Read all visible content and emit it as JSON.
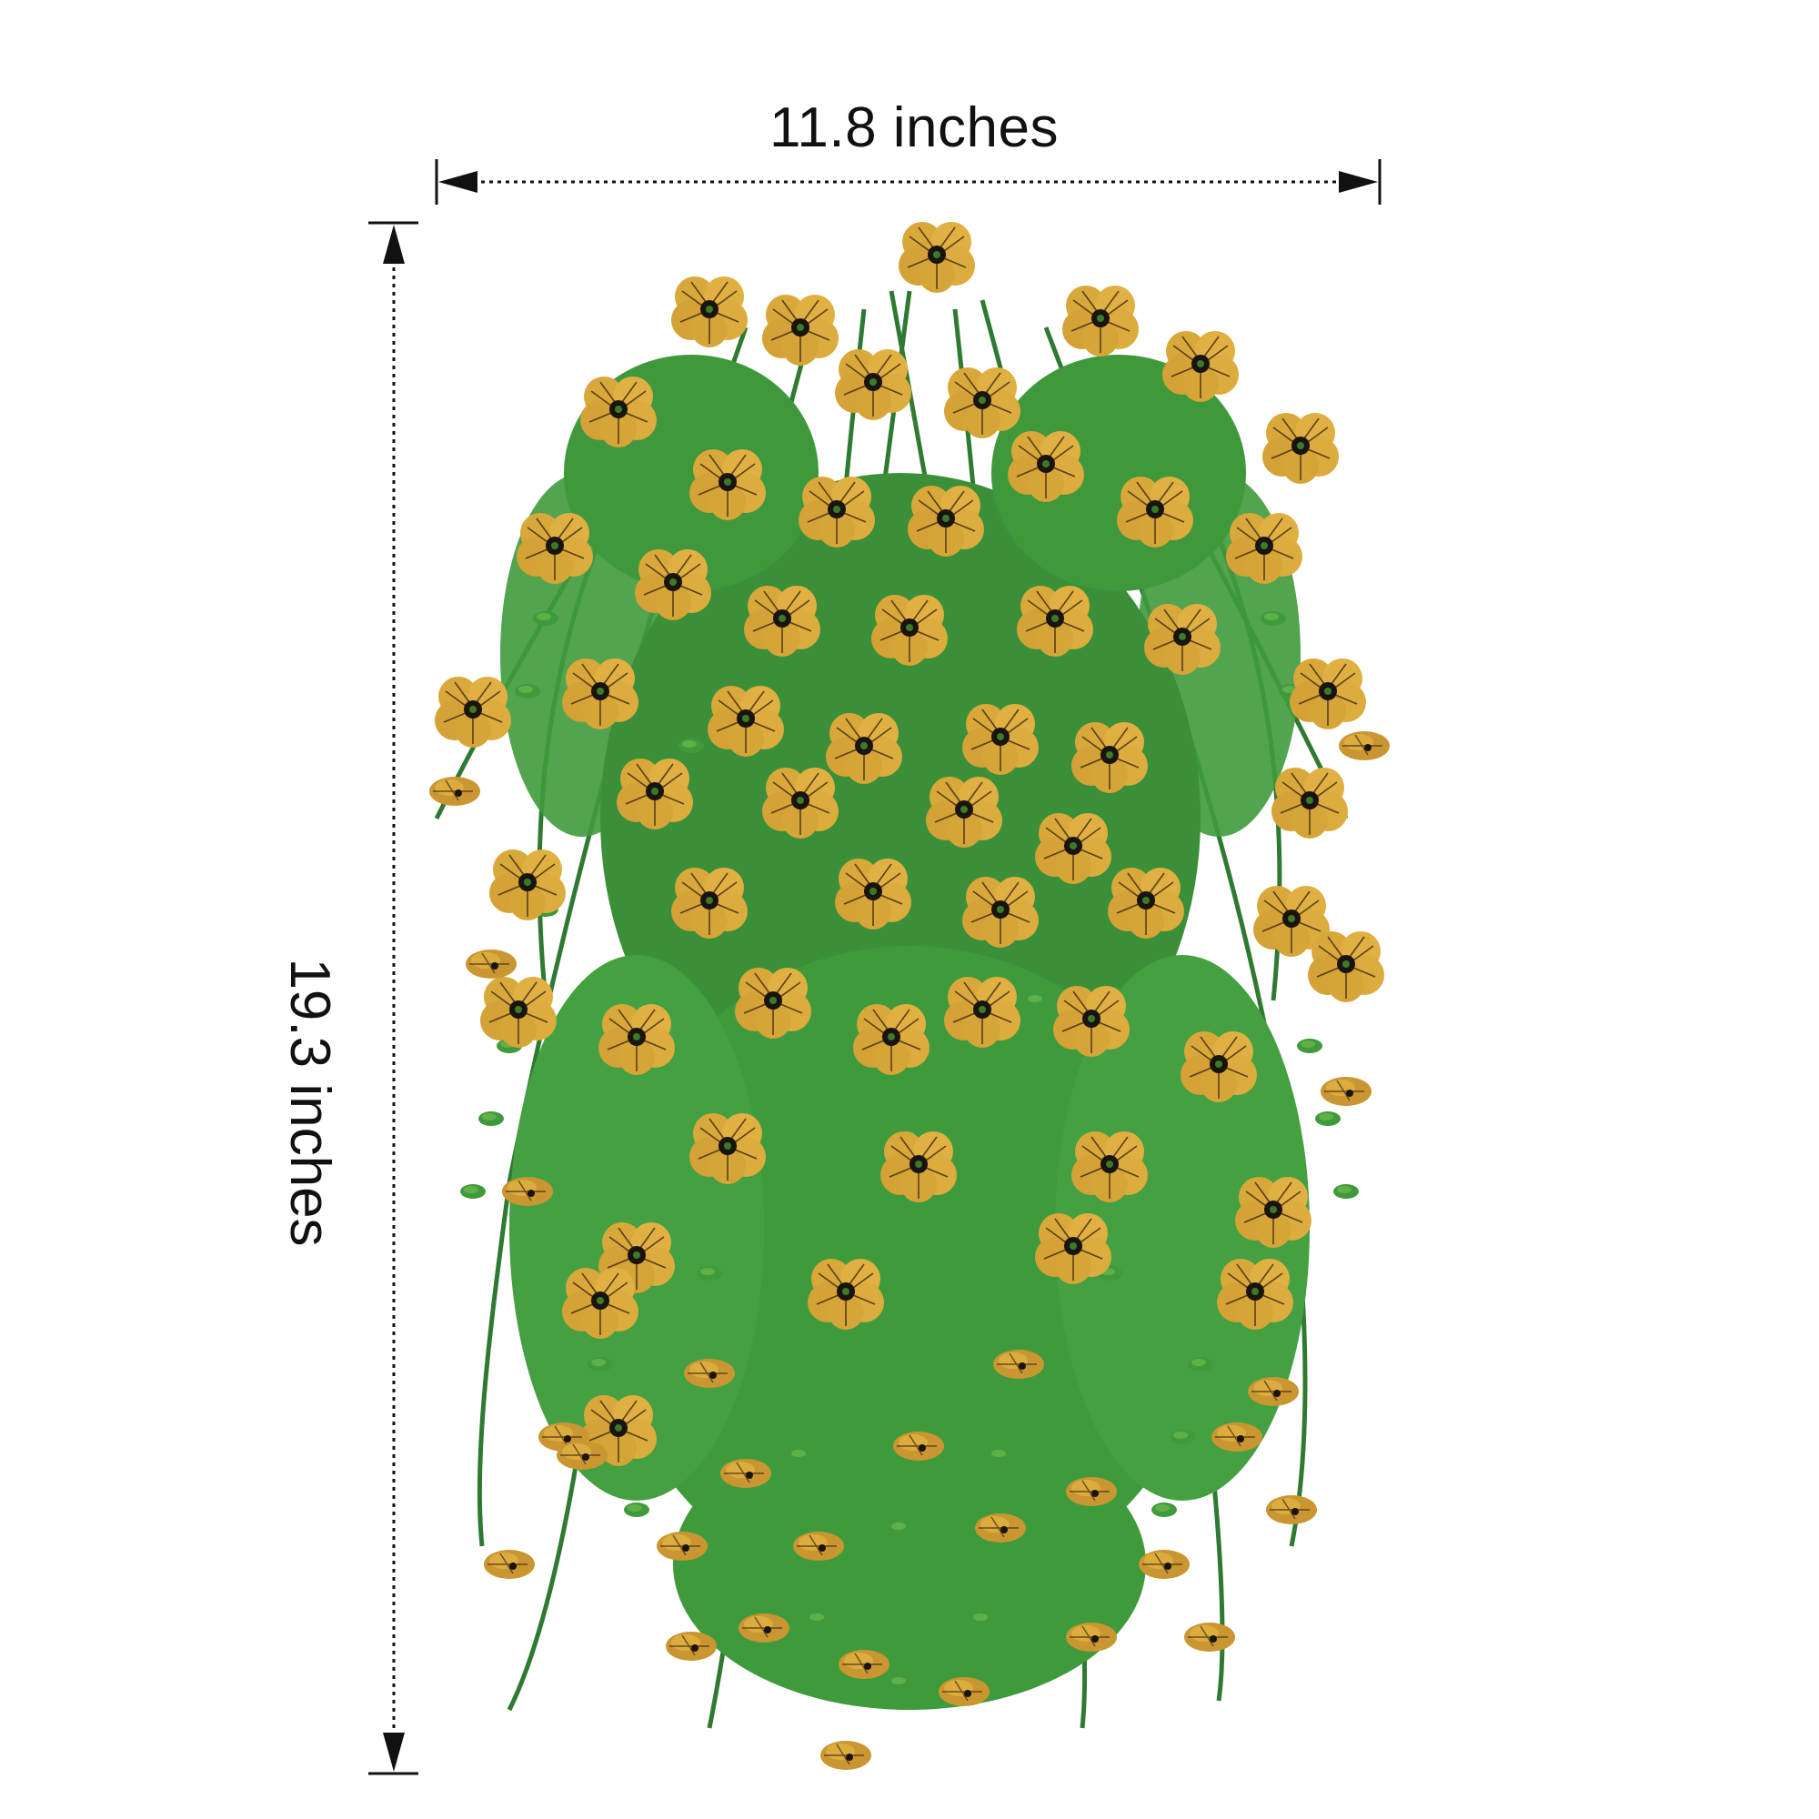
{
  "dimensions": {
    "width_label": "11.8 inches",
    "height_label": "19.3 inches"
  },
  "colors": {
    "petal": "#d9a83a",
    "petal_dark": "#b8862a",
    "vein": "#3a2410",
    "center": "#1a1410",
    "leaf": "#3f9a3c",
    "leaf_dark": "#2b6e2c",
    "leaf_light": "#74c04f",
    "stem": "#2f7a33"
  },
  "subject": "hanging-flower-bush"
}
